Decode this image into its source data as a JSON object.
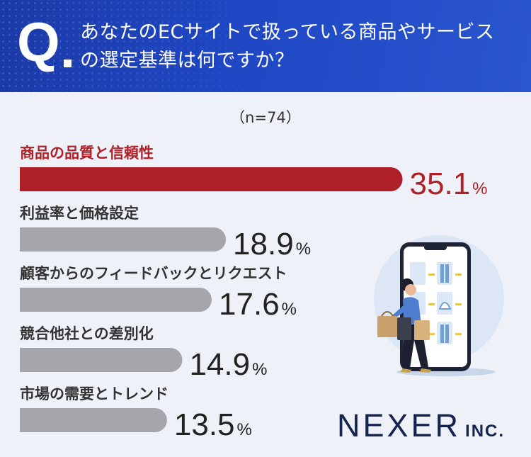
{
  "question": {
    "mark": "Q",
    "line1": "あなたのECサイトで扱っている商品やサービス",
    "line2": "の選定基準は何ですか？"
  },
  "sample": "（n=74）",
  "colors": {
    "highlight": "#b02028",
    "bar": "#a5a6ab",
    "label": "#333333",
    "header": "#1f47c4"
  },
  "chart_data": {
    "type": "bar",
    "orientation": "horizontal",
    "unit": "%",
    "categories": [
      "商品の品質と信頼性",
      "利益率と価格設定",
      "顧客からのフィードバックとリクエスト",
      "競合他社との差別化",
      "市場の需要とトレンド"
    ],
    "values": [
      35.1,
      18.9,
      17.6,
      14.9,
      13.5
    ],
    "highlight_index": 0
  },
  "logo": {
    "main": "NEXER",
    "suffix": "INC."
  },
  "illustration": "woman-shopping-with-smartphone"
}
